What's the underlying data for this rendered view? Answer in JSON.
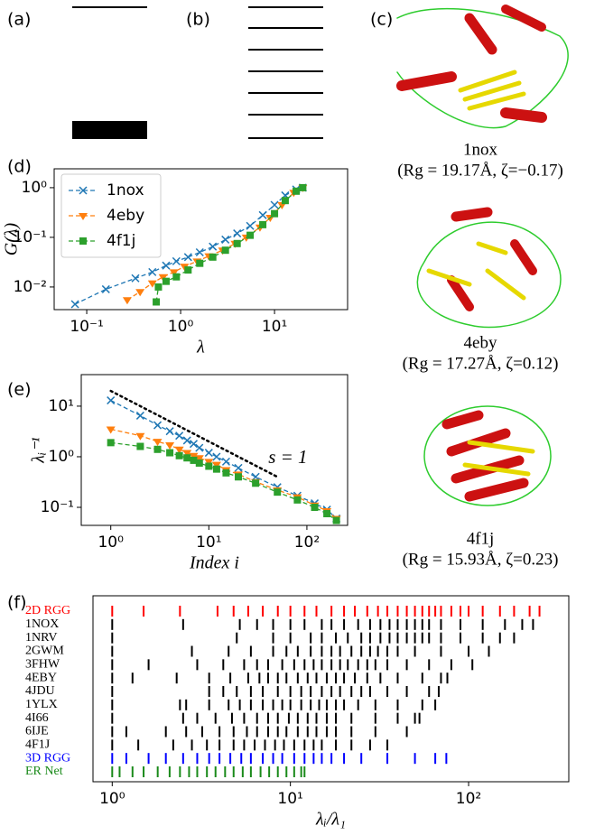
{
  "chart_data": [
    {
      "panel": "(a)",
      "type": "diagram"
    },
    {
      "panel": "(b)",
      "type": "diagram"
    },
    {
      "panel": "(c)",
      "type": "image",
      "items": [
        {
          "name": "1nox",
          "caption": "(Rg = 19.17Å, ζ=−0.17)"
        },
        {
          "name": "4eby",
          "caption": "(Rg = 17.27Å, ζ=0.12)"
        },
        {
          "name": "4f1j",
          "caption": "(Rg = 15.93Å, ζ=0.23)"
        }
      ]
    },
    {
      "panel": "(d)",
      "type": "line",
      "xlabel": "λ",
      "ylabel": "G(λ)",
      "xlog": true,
      "ylog": true,
      "xlim": [
        0.045,
        60
      ],
      "ylim": [
        0.0035,
        2.4
      ],
      "xticks": [
        {
          "value": 0.1,
          "label": "10⁻¹"
        },
        {
          "value": 1,
          "label": "10⁰"
        },
        {
          "value": 10,
          "label": "10¹"
        }
      ],
      "yticks": [
        {
          "value": 0.01,
          "label": "10⁻²"
        },
        {
          "value": 0.1,
          "label": "10⁻¹"
        },
        {
          "value": 1,
          "label": "10⁰"
        }
      ],
      "legend": "upper left",
      "series": [
        {
          "name": "1nox",
          "color": "#1f77b4",
          "marker": "x",
          "x": [
            0.075,
            0.16,
            0.33,
            0.5,
            0.7,
            0.9,
            1.2,
            1.6,
            2.2,
            3,
            4,
            5.5,
            7.5,
            10,
            13,
            17,
            20
          ],
          "values": [
            0.0045,
            0.009,
            0.015,
            0.02,
            0.027,
            0.033,
            0.04,
            0.05,
            0.065,
            0.09,
            0.12,
            0.17,
            0.28,
            0.45,
            0.7,
            0.92,
            1.0
          ]
        },
        {
          "name": "4eby",
          "color": "#ff7f0e",
          "marker": "v",
          "x": [
            0.27,
            0.37,
            0.5,
            0.65,
            0.85,
            1.1,
            1.5,
            2,
            2.8,
            3.8,
            5,
            7,
            9,
            12,
            16,
            20
          ],
          "values": [
            0.0055,
            0.008,
            0.012,
            0.016,
            0.02,
            0.026,
            0.033,
            0.042,
            0.055,
            0.075,
            0.1,
            0.16,
            0.25,
            0.45,
            0.8,
            1.0
          ]
        },
        {
          "name": "4f1j",
          "color": "#2ca02c",
          "marker": "s",
          "x": [
            0.55,
            0.58,
            0.7,
            0.9,
            1.2,
            1.6,
            2.2,
            3,
            4,
            5.5,
            7.5,
            10,
            13,
            17,
            20
          ],
          "values": [
            0.005,
            0.01,
            0.013,
            0.016,
            0.022,
            0.03,
            0.04,
            0.055,
            0.075,
            0.11,
            0.18,
            0.3,
            0.55,
            0.85,
            1.0
          ]
        }
      ]
    },
    {
      "panel": "(e)",
      "type": "line",
      "xlabel": "Index i",
      "ylabel": "λᵢ⁻¹",
      "xlog": true,
      "ylog": true,
      "xlim": [
        0.5,
        260
      ],
      "ylim": [
        0.044,
        42
      ],
      "xticks": [
        {
          "value": 1,
          "label": "10⁰"
        },
        {
          "value": 10,
          "label": "10¹"
        },
        {
          "value": 100,
          "label": "10²"
        }
      ],
      "yticks": [
        {
          "value": 0.1,
          "label": "10⁻¹"
        },
        {
          "value": 1,
          "label": "10⁰"
        },
        {
          "value": 10,
          "label": "10¹"
        }
      ],
      "annotation": {
        "text": "s = 1",
        "x": [
          1,
          50
        ],
        "values": [
          20,
          0.4
        ]
      },
      "series": [
        {
          "color": "#1f77b4",
          "marker": "x",
          "x": [
            1,
            2,
            3,
            4,
            5,
            6,
            7,
            8,
            10,
            12,
            15,
            20,
            30,
            50,
            80,
            120,
            160,
            200
          ],
          "values": [
            13,
            6.5,
            4.2,
            3.2,
            2.6,
            2.1,
            1.8,
            1.5,
            1.2,
            1.0,
            0.8,
            0.6,
            0.4,
            0.25,
            0.17,
            0.12,
            0.09,
            0.06
          ]
        },
        {
          "color": "#ff7f0e",
          "marker": "v",
          "x": [
            1,
            2,
            3,
            4,
            5,
            6,
            7,
            8,
            10,
            12,
            15,
            20,
            30,
            50,
            80,
            120,
            160,
            200
          ],
          "values": [
            3.5,
            2.6,
            2.0,
            1.7,
            1.4,
            1.2,
            1.05,
            0.95,
            0.8,
            0.7,
            0.55,
            0.45,
            0.32,
            0.22,
            0.16,
            0.11,
            0.085,
            0.06
          ]
        },
        {
          "color": "#2ca02c",
          "marker": "s",
          "x": [
            1,
            2,
            3,
            4,
            5,
            6,
            7,
            8,
            10,
            12,
            15,
            20,
            30,
            50,
            80,
            120,
            160,
            200
          ],
          "values": [
            1.9,
            1.6,
            1.4,
            1.2,
            1.05,
            0.95,
            0.85,
            0.75,
            0.65,
            0.57,
            0.48,
            0.4,
            0.3,
            0.2,
            0.14,
            0.1,
            0.075,
            0.055
          ]
        }
      ]
    },
    {
      "panel": "(f)",
      "type": "strip",
      "xlabel": "λᵢ/λ₁",
      "xlog": true,
      "xlim": [
        0.78,
        365
      ],
      "xticks": [
        {
          "value": 1,
          "label": "10⁰"
        },
        {
          "value": 10,
          "label": "10¹"
        },
        {
          "value": 100,
          "label": "10²"
        }
      ],
      "series": [
        {
          "name": "2D RGG",
          "color": "#ff0000",
          "values": [
            1,
            1.5,
            2.4,
            3.9,
            4.8,
            5.8,
            7,
            8.5,
            10,
            12,
            14,
            17,
            20,
            23,
            27,
            31,
            35,
            40,
            45,
            50,
            55,
            60,
            65,
            70,
            80,
            90,
            100,
            120,
            150,
            180,
            220,
            250
          ]
        },
        {
          "name": "1NOX",
          "color": "#000000",
          "values": [
            1,
            2.5,
            5.2,
            6.5,
            8,
            10,
            12,
            15,
            17,
            20,
            24,
            28,
            32,
            36,
            40,
            45,
            50,
            55,
            60,
            70,
            90,
            120,
            160,
            200,
            230
          ]
        },
        {
          "name": "1NRV",
          "color": "#000000",
          "values": [
            1,
            5,
            8,
            10,
            13,
            15,
            18,
            21,
            25,
            28,
            32,
            36,
            40,
            45,
            50,
            55,
            60,
            70,
            90,
            120,
            150,
            180
          ]
        },
        {
          "name": "2GWM",
          "color": "#000000",
          "values": [
            1,
            2.8,
            4.5,
            6,
            8,
            9.5,
            11,
            13,
            15,
            17,
            19,
            22,
            25,
            28,
            31,
            35,
            40,
            50,
            70,
            100,
            130
          ]
        },
        {
          "name": "3FHW",
          "color": "#000000",
          "values": [
            1,
            1.6,
            3,
            4.2,
            5.5,
            6.5,
            7.5,
            9,
            10.5,
            12,
            13.5,
            15,
            17,
            19,
            21,
            24,
            27,
            30,
            35,
            45,
            60,
            80,
            105
          ]
        },
        {
          "name": "4EBY",
          "color": "#000000",
          "values": [
            1,
            1.3,
            2.3,
            3.5,
            4.6,
            5.8,
            6.7,
            7.5,
            8.5,
            9.5,
            11,
            12.5,
            14,
            16,
            18,
            20,
            23,
            27,
            32,
            40,
            55,
            70,
            76
          ]
        },
        {
          "name": "4JDU",
          "color": "#000000",
          "values": [
            1,
            3.5,
            4.2,
            5,
            6,
            7,
            8.5,
            10,
            11.5,
            13,
            15,
            17,
            19,
            22,
            25,
            28,
            35,
            45,
            60,
            68
          ]
        },
        {
          "name": "1YLX",
          "color": "#000000",
          "values": [
            1,
            2.4,
            2.6,
            3.5,
            4.5,
            5.2,
            6,
            7,
            8,
            9,
            10,
            11.5,
            13,
            14.5,
            16,
            18,
            20,
            24,
            30,
            40,
            55,
            65
          ]
        },
        {
          "name": "4I66",
          "color": "#000000",
          "values": [
            1,
            2.5,
            3,
            3.8,
            4.7,
            5.5,
            6.5,
            7.5,
            8.5,
            9.8,
            11,
            12.5,
            14,
            16,
            18,
            22,
            30,
            40,
            50,
            53
          ]
        },
        {
          "name": "6IJE",
          "color": "#000000",
          "values": [
            1,
            1.2,
            2,
            2.6,
            3.2,
            4,
            4.8,
            5.7,
            6.5,
            7.5,
            8.5,
            9.5,
            11,
            12.5,
            14,
            16,
            18,
            22,
            30,
            45
          ]
        },
        {
          "name": "4F1J",
          "color": "#000000",
          "values": [
            1,
            1.4,
            2.2,
            2.8,
            3.4,
            4,
            4.8,
            5.5,
            6.3,
            7.2,
            8.2,
            9.2,
            10.5,
            12,
            13.5,
            15,
            18,
            22,
            28,
            35
          ]
        },
        {
          "name": "3D RGG",
          "color": "#0000ff",
          "values": [
            1,
            1.2,
            1.6,
            2,
            2.5,
            3,
            3.5,
            4,
            4.6,
            5.3,
            6,
            7,
            8,
            9,
            10.5,
            12,
            13.5,
            15,
            17,
            20,
            25,
            35,
            50,
            65,
            75
          ]
        },
        {
          "name": "ER Net",
          "color": "#1a8a1a",
          "values": [
            1,
            1.1,
            1.3,
            1.5,
            1.8,
            2.1,
            2.4,
            2.7,
            3,
            3.4,
            3.8,
            4.3,
            4.8,
            5.4,
            6,
            6.8,
            7.6,
            8.5,
            9.5,
            10.5,
            11.5,
            12
          ]
        }
      ]
    }
  ]
}
